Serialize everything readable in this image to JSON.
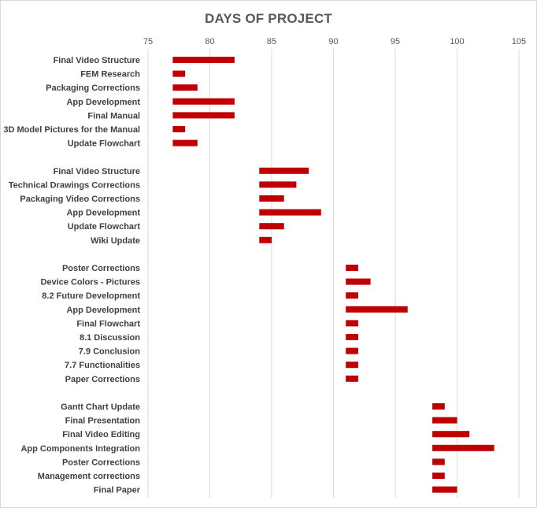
{
  "chart_data": {
    "type": "bar",
    "orientation": "horizontal",
    "title": "DAYS OF PROJECT",
    "xlabel": "",
    "ylabel": "",
    "xlim": [
      75,
      105
    ],
    "x_ticks": [
      75,
      80,
      85,
      90,
      95,
      100,
      105
    ],
    "grid": true,
    "axis_position": "top",
    "bar_color": "#c00000",
    "gridline_color": "#d9d9d9",
    "tasks": [
      {
        "label": "Final Video Structure",
        "start": 77,
        "end": 82
      },
      {
        "label": "FEM Research",
        "start": 77,
        "end": 78
      },
      {
        "label": "Packaging Corrections",
        "start": 77,
        "end": 79
      },
      {
        "label": "App Development",
        "start": 77,
        "end": 82
      },
      {
        "label": "Final Manual",
        "start": 77,
        "end": 82
      },
      {
        "label": "3D Model Pictures for the Manual",
        "start": 77,
        "end": 78
      },
      {
        "label": "Update Flowchart",
        "start": 77,
        "end": 79
      },
      {
        "label": "",
        "start": null,
        "end": null
      },
      {
        "label": "Final Video Structure",
        "start": 84,
        "end": 88
      },
      {
        "label": "Technical Drawings Corrections",
        "start": 84,
        "end": 87
      },
      {
        "label": "Packaging Video Corrections",
        "start": 84,
        "end": 86
      },
      {
        "label": "App Development",
        "start": 84,
        "end": 89
      },
      {
        "label": "Update Flowchart",
        "start": 84,
        "end": 86
      },
      {
        "label": "Wiki Update",
        "start": 84,
        "end": 85
      },
      {
        "label": "",
        "start": null,
        "end": null
      },
      {
        "label": "Poster Corrections",
        "start": 91,
        "end": 92
      },
      {
        "label": "Device Colors - Pictures",
        "start": 91,
        "end": 93
      },
      {
        "label": "8.2 Future Development",
        "start": 91,
        "end": 92
      },
      {
        "label": "App Development",
        "start": 91,
        "end": 96
      },
      {
        "label": "Final Flowchart",
        "start": 91,
        "end": 92
      },
      {
        "label": "8.1 Discussion",
        "start": 91,
        "end": 92
      },
      {
        "label": "7.9 Conclusion",
        "start": 91,
        "end": 92
      },
      {
        "label": "7.7 Functionalities",
        "start": 91,
        "end": 92
      },
      {
        "label": "Paper Corrections",
        "start": 91,
        "end": 92
      },
      {
        "label": "",
        "start": null,
        "end": null
      },
      {
        "label": "Gantt Chart Update",
        "start": 98,
        "end": 99
      },
      {
        "label": "Final Presentation",
        "start": 98,
        "end": 100
      },
      {
        "label": "Final Video Editing",
        "start": 98,
        "end": 101
      },
      {
        "label": "App Components Integration",
        "start": 98,
        "end": 103
      },
      {
        "label": "Poster Corrections",
        "start": 98,
        "end": 99
      },
      {
        "label": "Management corrections",
        "start": 98,
        "end": 99
      },
      {
        "label": "Final Paper",
        "start": 98,
        "end": 100
      }
    ]
  }
}
